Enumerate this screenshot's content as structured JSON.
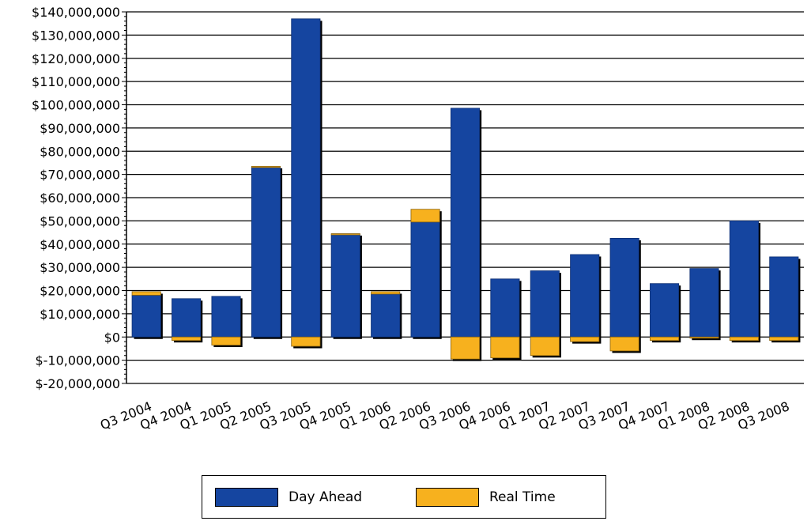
{
  "chart_data": {
    "type": "bar",
    "stacked": true,
    "title": "",
    "xlabel": "",
    "ylabel": "",
    "ylim": [
      -20000000,
      140000000
    ],
    "yticks": [
      -20000000,
      -10000000,
      0,
      10000000,
      20000000,
      30000000,
      40000000,
      50000000,
      60000000,
      70000000,
      80000000,
      90000000,
      100000000,
      110000000,
      120000000,
      130000000,
      140000000
    ],
    "ytick_labels": [
      "$-20,000,000",
      "$-10,000,000",
      "$0",
      "$10,000,000",
      "$20,000,000",
      "$30,000,000",
      "$40,000,000",
      "$50,000,000",
      "$60,000,000",
      "$70,000,000",
      "$80,000,000",
      "$90,000,000",
      "$100,000,000",
      "$110,000,000",
      "$120,000,000",
      "$130,000,000",
      "$140,000,000"
    ],
    "categories": [
      "Q3 2004",
      "Q4 2004",
      "Q1 2005",
      "Q2 2005",
      "Q3 2005",
      "Q4 2005",
      "Q1 2006",
      "Q2 2006",
      "Q3 2006",
      "Q4 2006",
      "Q1 2007",
      "Q2 2007",
      "Q3 2007",
      "Q4 2007",
      "Q1 2008",
      "Q2 2008",
      "Q3 2008"
    ],
    "series": [
      {
        "name": "Day Ahead",
        "color": "#1545a0",
        "values": [
          18000000,
          16500000,
          17500000,
          73000000,
          137000000,
          44000000,
          18500000,
          49500000,
          98500000,
          25000000,
          28500000,
          35500000,
          42500000,
          23000000,
          29500000,
          50000000,
          34500000
        ]
      },
      {
        "name": "Real Time",
        "color": "#f7b11e",
        "values": [
          1500000,
          -1500000,
          -3500000,
          500000,
          -4000000,
          500000,
          1000000,
          5500000,
          -9500000,
          -9000000,
          -8000000,
          -2000000,
          -6000000,
          -1500000,
          -500000,
          -1500000,
          -1500000
        ]
      }
    ],
    "grid": true,
    "legend_position": "bottom"
  }
}
